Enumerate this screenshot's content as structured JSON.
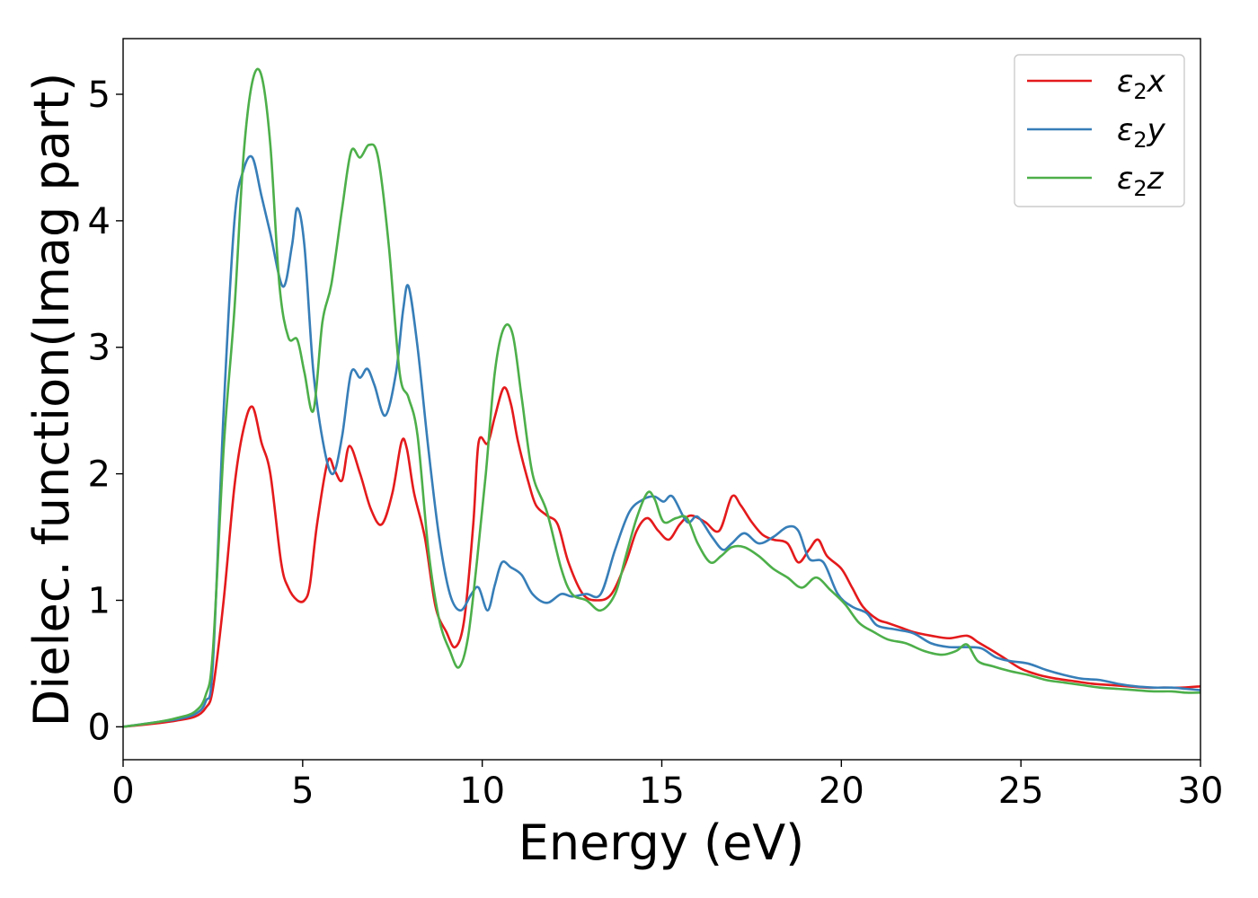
{
  "chart_data": {
    "type": "line",
    "title": "",
    "xlabel": "Energy (eV)",
    "ylabel": "Dielec. function(Imag part)",
    "xlim": [
      0,
      30
    ],
    "ylim": [
      -0.26,
      5.44
    ],
    "xticks": [
      0,
      5,
      10,
      15,
      20,
      25,
      30
    ],
    "yticks": [
      0,
      1,
      2,
      3,
      4,
      5
    ],
    "grid": false,
    "legend_position": "top-right",
    "series": [
      {
        "name": "ε2x",
        "legend_main": "ε",
        "legend_sub": "2",
        "legend_suffix": "x",
        "color": "#e41a1c",
        "x": [
          0,
          1,
          1.5,
          2,
          2.3,
          2.5,
          2.8,
          3.1,
          3.35,
          3.6,
          3.85,
          4.1,
          4.4,
          4.6,
          4.85,
          5.05,
          5.2,
          5.4,
          5.7,
          5.9,
          6.1,
          6.3,
          6.6,
          6.9,
          7.2,
          7.5,
          7.75,
          7.9,
          8.1,
          8.4,
          8.7,
          9.0,
          9.25,
          9.5,
          9.75,
          9.9,
          10.15,
          10.35,
          10.6,
          10.8,
          11.0,
          11.3,
          11.5,
          11.8,
          12.1,
          12.4,
          12.8,
          13.2,
          13.6,
          14.0,
          14.3,
          14.6,
          14.9,
          15.2,
          15.5,
          15.8,
          16.2,
          16.6,
          16.95,
          17.2,
          17.5,
          17.8,
          18.1,
          18.5,
          18.8,
          19.1,
          19.35,
          19.6,
          20.0,
          20.3,
          20.6,
          21.0,
          21.3,
          21.7,
          22.0,
          22.5,
          23.0,
          23.5,
          23.8,
          24.1,
          24.5,
          25.0,
          25.5,
          26.0,
          26.5,
          27.0,
          27.5,
          28.0,
          28.5,
          29.0,
          29.5,
          30.0
        ],
        "y": [
          0,
          0.03,
          0.05,
          0.08,
          0.15,
          0.3,
          1.0,
          1.9,
          2.35,
          2.53,
          2.25,
          2.0,
          1.3,
          1.1,
          1.0,
          1.0,
          1.12,
          1.6,
          2.1,
          2.02,
          1.95,
          2.22,
          2.0,
          1.72,
          1.6,
          1.85,
          2.25,
          2.2,
          1.85,
          1.5,
          0.95,
          0.75,
          0.63,
          0.85,
          1.6,
          2.25,
          2.24,
          2.45,
          2.68,
          2.55,
          2.25,
          1.92,
          1.75,
          1.67,
          1.6,
          1.3,
          1.05,
          1.0,
          1.05,
          1.3,
          1.55,
          1.65,
          1.55,
          1.48,
          1.6,
          1.67,
          1.62,
          1.55,
          1.82,
          1.75,
          1.62,
          1.52,
          1.48,
          1.45,
          1.3,
          1.4,
          1.48,
          1.35,
          1.25,
          1.1,
          0.95,
          0.85,
          0.82,
          0.78,
          0.75,
          0.72,
          0.7,
          0.72,
          0.67,
          0.62,
          0.55,
          0.46,
          0.41,
          0.38,
          0.36,
          0.34,
          0.33,
          0.32,
          0.31,
          0.31,
          0.31,
          0.32
        ]
      },
      {
        "name": "ε2y",
        "legend_main": "ε",
        "legend_sub": "2",
        "legend_suffix": "y",
        "color": "#377eb8",
        "x": [
          0,
          1,
          1.5,
          2,
          2.3,
          2.5,
          2.8,
          3.1,
          3.35,
          3.6,
          3.85,
          4.1,
          4.45,
          4.7,
          4.85,
          5.05,
          5.3,
          5.6,
          5.85,
          6.1,
          6.35,
          6.6,
          6.8,
          7.0,
          7.3,
          7.6,
          7.8,
          7.95,
          8.2,
          8.5,
          8.8,
          9.1,
          9.4,
          9.7,
          9.9,
          10.15,
          10.35,
          10.55,
          10.8,
          11.1,
          11.4,
          11.8,
          12.2,
          12.5,
          12.9,
          13.3,
          13.7,
          14.1,
          14.5,
          14.8,
          15.05,
          15.3,
          15.7,
          16.0,
          16.4,
          16.7,
          16.95,
          17.3,
          17.7,
          18.1,
          18.5,
          18.8,
          19.1,
          19.5,
          19.9,
          20.3,
          20.7,
          21.0,
          21.5,
          22.0,
          22.5,
          23.0,
          23.5,
          23.9,
          24.3,
          24.7,
          25.2,
          25.7,
          26.2,
          26.7,
          27.2,
          27.7,
          28.2,
          28.7,
          29.2,
          29.6,
          30.0
        ],
        "y": [
          0,
          0.04,
          0.06,
          0.1,
          0.2,
          0.5,
          2.5,
          4.0,
          4.4,
          4.5,
          4.2,
          3.9,
          3.48,
          3.8,
          4.1,
          3.8,
          2.8,
          2.2,
          2.0,
          2.3,
          2.8,
          2.76,
          2.83,
          2.7,
          2.46,
          2.8,
          3.3,
          3.48,
          3.0,
          2.2,
          1.5,
          1.05,
          0.92,
          1.05,
          1.1,
          0.92,
          1.12,
          1.3,
          1.26,
          1.2,
          1.05,
          0.98,
          1.05,
          1.03,
          1.05,
          1.05,
          1.4,
          1.7,
          1.8,
          1.82,
          1.78,
          1.82,
          1.62,
          1.66,
          1.5,
          1.4,
          1.45,
          1.53,
          1.45,
          1.5,
          1.58,
          1.55,
          1.33,
          1.3,
          1.05,
          0.95,
          0.9,
          0.8,
          0.77,
          0.74,
          0.66,
          0.63,
          0.63,
          0.62,
          0.55,
          0.52,
          0.5,
          0.45,
          0.41,
          0.38,
          0.37,
          0.34,
          0.32,
          0.31,
          0.31,
          0.3,
          0.29
        ]
      },
      {
        "name": "ε2z",
        "legend_main": "ε",
        "legend_sub": "2",
        "legend_suffix": "z",
        "color": "#4daf4a",
        "x": [
          0,
          1,
          1.5,
          2,
          2.3,
          2.5,
          2.8,
          3.1,
          3.35,
          3.6,
          3.85,
          4.1,
          4.35,
          4.6,
          4.85,
          5.05,
          5.3,
          5.55,
          5.8,
          6.1,
          6.35,
          6.6,
          6.85,
          7.1,
          7.4,
          7.7,
          7.95,
          8.2,
          8.5,
          8.8,
          9.1,
          9.35,
          9.6,
          9.85,
          10.1,
          10.35,
          10.6,
          10.85,
          11.1,
          11.4,
          11.8,
          12.2,
          12.5,
          12.9,
          13.3,
          13.7,
          14.0,
          14.3,
          14.6,
          14.8,
          15.05,
          15.4,
          15.7,
          16.0,
          16.35,
          16.65,
          16.95,
          17.3,
          17.7,
          18.1,
          18.5,
          18.9,
          19.3,
          19.7,
          20.1,
          20.5,
          20.9,
          21.3,
          21.8,
          22.3,
          22.8,
          23.2,
          23.5,
          23.8,
          24.2,
          24.7,
          25.2,
          25.7,
          26.2,
          26.7,
          27.2,
          27.7,
          28.2,
          28.7,
          29.2,
          29.6,
          30.0
        ],
        "y": [
          0,
          0.04,
          0.07,
          0.12,
          0.25,
          0.6,
          2.2,
          3.3,
          4.5,
          5.1,
          5.15,
          4.6,
          3.5,
          3.08,
          3.06,
          2.8,
          2.5,
          3.2,
          3.5,
          4.1,
          4.55,
          4.5,
          4.6,
          4.5,
          3.8,
          2.8,
          2.6,
          2.3,
          1.4,
          0.85,
          0.6,
          0.47,
          0.7,
          1.3,
          2.0,
          2.8,
          3.15,
          3.1,
          2.6,
          2.0,
          1.7,
          1.25,
          1.05,
          1.0,
          0.92,
          1.05,
          1.35,
          1.65,
          1.85,
          1.8,
          1.62,
          1.65,
          1.65,
          1.45,
          1.3,
          1.35,
          1.42,
          1.42,
          1.35,
          1.25,
          1.18,
          1.1,
          1.18,
          1.08,
          0.97,
          0.82,
          0.75,
          0.69,
          0.66,
          0.6,
          0.57,
          0.6,
          0.65,
          0.52,
          0.48,
          0.44,
          0.41,
          0.37,
          0.35,
          0.33,
          0.31,
          0.3,
          0.29,
          0.28,
          0.28,
          0.27,
          0.27
        ]
      }
    ]
  }
}
